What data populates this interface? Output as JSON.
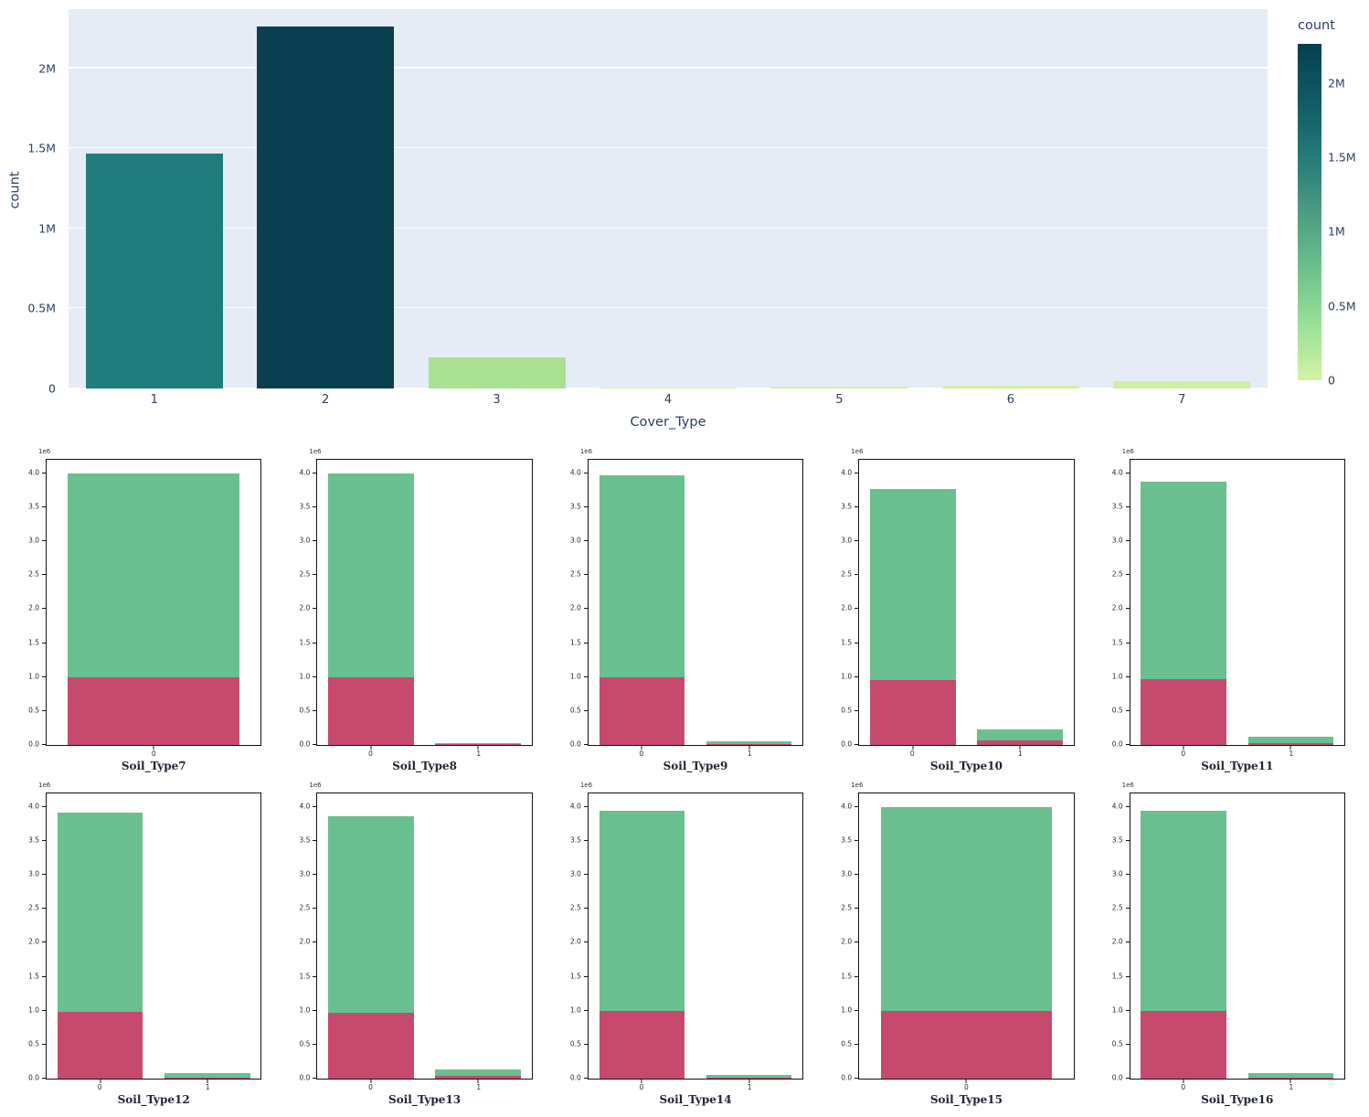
{
  "chart_data": [
    {
      "type": "bar",
      "title": "",
      "xlabel": "Cover_Type",
      "ylabel": "count",
      "categories": [
        "1",
        "2",
        "3",
        "4",
        "5",
        "6",
        "7"
      ],
      "values": [
        1470000,
        2262000,
        196000,
        2000,
        9000,
        15000,
        48000
      ],
      "bar_colors": [
        "#217d7b",
        "#0a3f50",
        "#a9e094",
        "#d3f2a3",
        "#d2f2a3",
        "#d1f1a2",
        "#ccefa1"
      ],
      "ylim": [
        0,
        2370000
      ],
      "yticks": [
        {
          "label": "0",
          "value": 0
        },
        {
          "label": "0.5M",
          "value": 500000
        },
        {
          "label": "1M",
          "value": 1000000
        },
        {
          "label": "1.5M",
          "value": 1500000
        },
        {
          "label": "2M",
          "value": 2000000
        }
      ],
      "grid": true,
      "plot_bg": "#e5ecf6",
      "text_color": "#2a3f5f",
      "colorbar": {
        "title": "count",
        "range_max": 2262000,
        "gradient": [
          "#d3f2a3",
          "#97e196",
          "#6cc08b",
          "#4c9b82",
          "#217a79",
          "#105965",
          "#074050"
        ]
      }
    },
    {
      "type": "bar",
      "subtype": "stacked-overlay-grid",
      "ylim": [
        0,
        4.2
      ],
      "yticks": [
        "0.0",
        "0.5",
        "1.0",
        "1.5",
        "2.0",
        "2.5",
        "3.0",
        "3.5",
        "4.0"
      ],
      "offset_label": "1e6",
      "series_colors": {
        "green": "#6abf8e",
        "red": "#c64a6d"
      },
      "subplots": [
        {
          "xlabel": "Soil_Type7",
          "categories": [
            "0"
          ],
          "green_total": [
            4.0
          ],
          "red": [
            1.0
          ]
        },
        {
          "xlabel": "Soil_Type8",
          "categories": [
            "0",
            "1"
          ],
          "green_total": [
            4.0,
            0.03
          ],
          "red": [
            1.0,
            0.01
          ]
        },
        {
          "xlabel": "Soil_Type9",
          "categories": [
            "0",
            "1"
          ],
          "green_total": [
            3.97,
            0.05
          ],
          "red": [
            1.0,
            0.02
          ]
        },
        {
          "xlabel": "Soil_Type10",
          "categories": [
            "0",
            "1"
          ],
          "green_total": [
            3.77,
            0.23
          ],
          "red": [
            0.95,
            0.07
          ]
        },
        {
          "xlabel": "Soil_Type11",
          "categories": [
            "0",
            "1"
          ],
          "green_total": [
            3.88,
            0.12
          ],
          "red": [
            0.97,
            0.03
          ]
        },
        {
          "xlabel": "Soil_Type12",
          "categories": [
            "0",
            "1"
          ],
          "green_total": [
            3.92,
            0.08
          ],
          "red": [
            0.98,
            0.02
          ]
        },
        {
          "xlabel": "Soil_Type13",
          "categories": [
            "0",
            "1"
          ],
          "green_total": [
            3.87,
            0.13
          ],
          "red": [
            0.97,
            0.04
          ]
        },
        {
          "xlabel": "Soil_Type14",
          "categories": [
            "0",
            "1"
          ],
          "green_total": [
            3.94,
            0.06
          ],
          "red": [
            0.99,
            0.02
          ]
        },
        {
          "xlabel": "Soil_Type15",
          "categories": [
            "0"
          ],
          "green_total": [
            4.0
          ],
          "red": [
            1.0
          ]
        },
        {
          "xlabel": "Soil_Type16",
          "categories": [
            "0",
            "1"
          ],
          "green_total": [
            3.94,
            0.08
          ],
          "red": [
            0.99,
            0.02
          ]
        }
      ]
    }
  ]
}
